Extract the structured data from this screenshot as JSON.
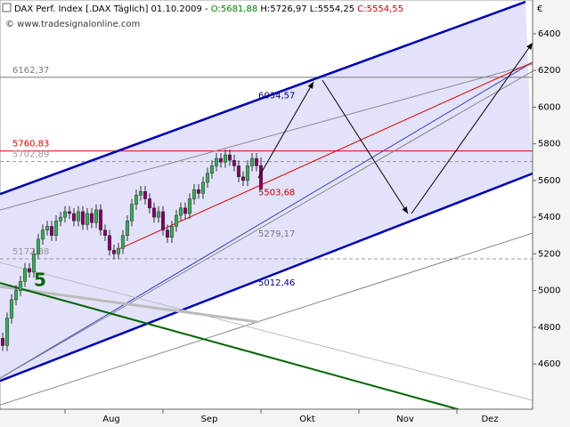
{
  "chart_data": {
    "type": "candlestick",
    "header": [
      "DAX Perf. Index [.DAX Täglich] 01.10.2009 - ",
      "O:5681,88",
      " H:5726,97 L:5554,25 ",
      "C:5554,55"
    ],
    "header_colors": [
      "#000000",
      "#008000",
      "#000000",
      "#cc0000"
    ],
    "watermark": "© www.tradesignalonline.com",
    "currency": "€",
    "wave_label": "5",
    "up_color": "#3caa5a",
    "down_color": "#800060",
    "open": [
      4740,
      4700,
      4850,
      4950,
      5000,
      5050,
      5120,
      5100,
      5200,
      5280,
      5330,
      5350,
      5300,
      5380,
      5400,
      5430,
      5420,
      5380,
      5430,
      5360,
      5420,
      5370,
      5440,
      5330,
      5300,
      5220,
      5200,
      5230,
      5300,
      5380,
      5470,
      5520,
      5540,
      5500,
      5450,
      5400,
      5430,
      5330,
      5290,
      5350,
      5410,
      5450,
      5420,
      5500,
      5550,
      5530,
      5590,
      5640,
      5680,
      5720,
      5700,
      5740,
      5710,
      5680,
      5620,
      5600,
      5680,
      5720,
      5681.88
    ],
    "high": [
      4770,
      4880,
      4980,
      5030,
      5080,
      5150,
      5150,
      5230,
      5310,
      5360,
      5380,
      5380,
      5410,
      5430,
      5460,
      5460,
      5450,
      5460,
      5460,
      5450,
      5450,
      5470,
      5470,
      5360,
      5330,
      5250,
      5260,
      5330,
      5410,
      5500,
      5550,
      5570,
      5570,
      5530,
      5480,
      5460,
      5460,
      5360,
      5380,
      5440,
      5480,
      5480,
      5530,
      5580,
      5580,
      5620,
      5670,
      5710,
      5750,
      5750,
      5770,
      5770,
      5740,
      5710,
      5650,
      5710,
      5750,
      5750,
      5726.97
    ],
    "low": [
      4670,
      4670,
      4820,
      4920,
      4970,
      5020,
      5070,
      5070,
      5170,
      5250,
      5300,
      5270,
      5270,
      5350,
      5370,
      5390,
      5350,
      5350,
      5330,
      5330,
      5340,
      5340,
      5300,
      5270,
      5190,
      5170,
      5170,
      5200,
      5270,
      5350,
      5440,
      5490,
      5470,
      5420,
      5370,
      5370,
      5300,
      5260,
      5260,
      5320,
      5380,
      5390,
      5390,
      5470,
      5500,
      5500,
      5560,
      5610,
      5650,
      5670,
      5670,
      5680,
      5650,
      5590,
      5570,
      5570,
      5650,
      5650,
      5554.25
    ],
    "close": [
      4700,
      4850,
      4950,
      5000,
      5050,
      5120,
      5100,
      5200,
      5280,
      5330,
      5350,
      5300,
      5380,
      5400,
      5430,
      5420,
      5380,
      5430,
      5360,
      5420,
      5370,
      5440,
      5330,
      5300,
      5220,
      5200,
      5230,
      5300,
      5380,
      5470,
      5520,
      5540,
      5500,
      5450,
      5400,
      5430,
      5330,
      5290,
      5350,
      5410,
      5450,
      5420,
      5500,
      5550,
      5530,
      5590,
      5640,
      5680,
      5720,
      5700,
      5740,
      5710,
      5680,
      5620,
      5600,
      5680,
      5720,
      5680,
      5554.55
    ],
    "xlim": [
      -0.6,
      119
    ],
    "ylim": [
      4353,
      6584
    ],
    "yticks": [
      4600,
      4800,
      5000,
      5200,
      5400,
      5600,
      5800,
      6000,
      6200,
      6400
    ],
    "xticks": [
      14,
      36,
      58,
      80,
      102
    ],
    "month_labels": [
      {
        "value": 24.4,
        "label": "Aug"
      },
      {
        "value": 46.4,
        "label": "Sep"
      },
      {
        "value": 68.4,
        "label": "Okt"
      },
      {
        "value": 90.4,
        "label": "Nov"
      },
      {
        "value": 109.4,
        "label": "Dez"
      }
    ],
    "channel_fill": "#e2e2fa",
    "lines": [
      {
        "x": [
          -0.6,
          117.4
        ],
        "y": [
          5526,
          6574
        ],
        "color": "#0000b0",
        "width": 2.5
      },
      {
        "x": [
          -0.6,
          119
        ],
        "y": [
          4507,
          5638
        ],
        "color": "#0000b0",
        "width": 2.5
      },
      {
        "x": [
          -0.6,
          119
        ],
        "y": [
          4522,
          6244
        ],
        "color": "#3344bb",
        "width": 1
      },
      {
        "x": [
          -0.6,
          119
        ],
        "y": [
          5439,
          6235
        ],
        "color": "#888888",
        "width": 1
      },
      {
        "x": [
          -0.6,
          119
        ],
        "y": [
          4522,
          6196
        ],
        "color": "#888888",
        "width": 1
      },
      {
        "x": [
          -0.6,
          119
        ],
        "y": [
          4376,
          5313
        ],
        "color": "#888888",
        "width": 1
      },
      {
        "x": [
          -0.6,
          119
        ],
        "y": [
          5153,
          4401
        ],
        "color": "#bbbbbb",
        "width": 1
      },
      {
        "x": [
          -0.6,
          57.4
        ],
        "y": [
          5022,
          4828
        ],
        "color": "#bbbbbb",
        "width": 3
      },
      {
        "x": [
          26,
          119
        ],
        "y": [
          5225,
          6244
        ],
        "color": "#dd0000",
        "width": 1
      },
      {
        "x": [
          -0.6,
          102.4
        ],
        "y": [
          5041,
          4352
        ],
        "color": "#006400",
        "width": 2
      }
    ],
    "arrows": [
      {
        "x": [
          57.4,
          69.8
        ],
        "y": [
          5614,
          6138
        ]
      },
      {
        "x": [
          71.8,
          91
        ],
        "y": [
          6147,
          5420
        ]
      },
      {
        "x": [
          91.8,
          119
        ],
        "y": [
          5420,
          6351
        ]
      }
    ],
    "levels": [
      {
        "value": 6162.37,
        "label": "6162,37",
        "color": "#777777",
        "dash": false
      },
      {
        "value": 5760.83,
        "label": "5760,83",
        "color": "#dd0000",
        "dash": false
      },
      {
        "value": 5702.89,
        "label": "5702,89",
        "color": "#999999",
        "dash": true
      },
      {
        "value": 5172.88,
        "label": "5172,88",
        "color": "#999999",
        "dash": true
      }
    ],
    "channel_labels": [
      {
        "value": 6034.57,
        "label": "6034,57",
        "color": "#000080"
      },
      {
        "value": 5503.68,
        "label": "5503,68",
        "color": "#cc0000"
      },
      {
        "value": 5279.17,
        "label": "5279,17",
        "color": "#777777"
      },
      {
        "value": 5012.46,
        "label": "5012,46",
        "color": "#000080"
      }
    ]
  }
}
